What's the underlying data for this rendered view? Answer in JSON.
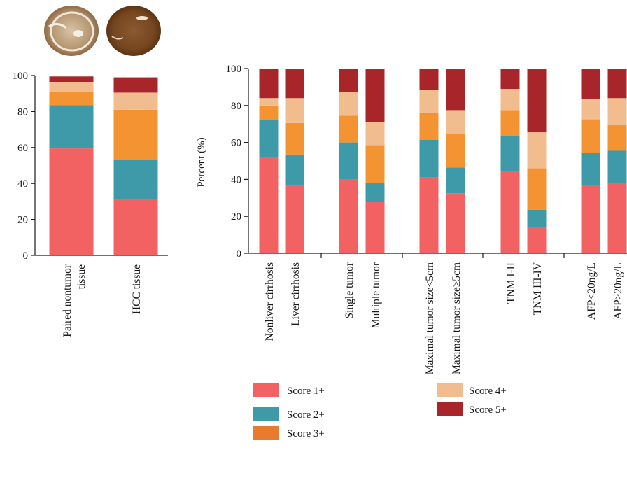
{
  "colors": {
    "score1": "#f26262",
    "score2": "#3e99a8",
    "score3": "#f39332",
    "score4": "#f2bd8e",
    "score5": "#a8252a"
  },
  "series_names": [
    "Score 1+",
    "Score 2+",
    "Score 3+",
    "Score 4+",
    "Score 5+"
  ],
  "legend": [
    {
      "label": "Score 1+",
      "color": "#f26262"
    },
    {
      "label": "Score 2+",
      "color": "#3e99a8"
    },
    {
      "label": "Score 3+",
      "color": "#e87b2d"
    },
    {
      "label": "Score 4+",
      "color": "#f2bd8e"
    },
    {
      "label": "Score 5+",
      "color": "#a8252a"
    }
  ],
  "images": {
    "tissue_nontumor_icon": "ihc-tissue-core-light",
    "tissue_hcc_icon": "ihc-tissue-core-dark"
  },
  "chart_data": [
    {
      "type": "bar",
      "stacked": true,
      "categories": [
        "Paired nontumor tissue",
        "HCC tissue"
      ],
      "series": [
        {
          "name": "Score 1+",
          "values": [
            59.5,
            31.5
          ]
        },
        {
          "name": "Score 2+",
          "values": [
            24.0,
            21.5
          ]
        },
        {
          "name": "Score 3+",
          "values": [
            7.5,
            28.0
          ]
        },
        {
          "name": "Score 4+",
          "values": [
            5.5,
            9.5
          ]
        },
        {
          "name": "Score 5+",
          "values": [
            3.0,
            8.5
          ]
        }
      ],
      "ylim": [
        0,
        100
      ],
      "yticks": [
        0,
        20,
        40,
        60,
        80,
        100
      ],
      "ylabel": "",
      "title": ""
    },
    {
      "type": "bar",
      "stacked": true,
      "groups": 5,
      "categories": [
        "Nonliver cirrhosis",
        "Liver cirrhosis",
        "Single tumor",
        "Multiple tumor",
        "Maximal tumor size<5cm",
        "Maximal tumor size≥5cm",
        "TNM I-II",
        "TNM III-IV",
        "AFP<20ng/L",
        "AFP≥20ng/L"
      ],
      "series": [
        {
          "name": "Score 1+",
          "values": [
            52,
            36.5,
            40,
            28,
            41,
            32.5,
            44,
            14,
            37,
            38
          ]
        },
        {
          "name": "Score 2+",
          "values": [
            20,
            17,
            20,
            10,
            20.5,
            14,
            19.5,
            9.5,
            17.5,
            17.5
          ]
        },
        {
          "name": "Score 3+",
          "values": [
            8,
            17,
            14.5,
            20.5,
            14.5,
            18,
            14,
            22.5,
            18,
            14
          ]
        },
        {
          "name": "Score 4+",
          "values": [
            4,
            13.5,
            13,
            12.5,
            12.5,
            13,
            11.5,
            19.5,
            11,
            14.5
          ]
        },
        {
          "name": "Score 5+",
          "values": [
            16,
            16,
            12.5,
            29,
            11.5,
            22.5,
            11,
            34.5,
            16.5,
            16
          ]
        }
      ],
      "ylim": [
        0,
        100
      ],
      "yticks": [
        0,
        20,
        40,
        60,
        80,
        100
      ],
      "ylabel": "Percent (%)",
      "title": ""
    }
  ]
}
